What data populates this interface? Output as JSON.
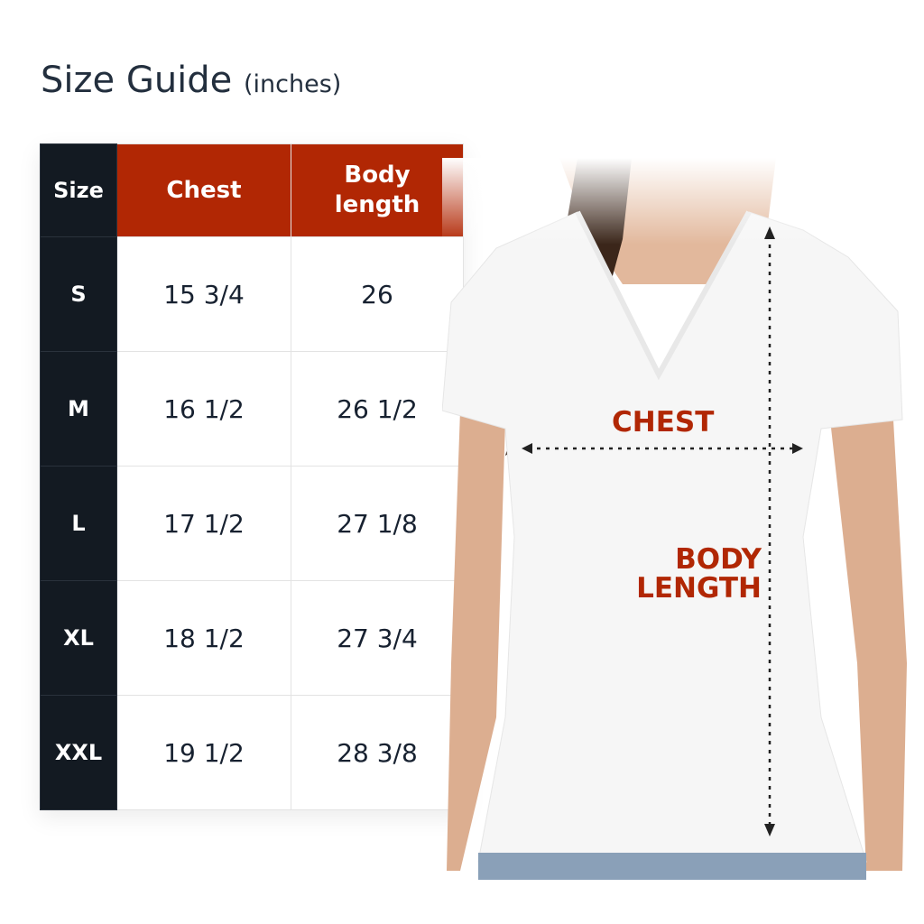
{
  "title": {
    "main": "Size Guide",
    "unit": "(inches)"
  },
  "table": {
    "headers": [
      "Size",
      "Chest",
      "Body length"
    ],
    "rows": [
      [
        "S",
        "15 3/4",
        "26"
      ],
      [
        "M",
        "16 1/2",
        "26 1/2"
      ],
      [
        "L",
        "17 1/2",
        "27 1/8"
      ],
      [
        "XL",
        "18 1/2",
        "27 3/4"
      ],
      [
        "XXL",
        "19 1/2",
        "28 3/8"
      ]
    ]
  },
  "diagram": {
    "chest_label": "CHEST",
    "body_label_1": "BODY",
    "body_label_2": "LENGTH"
  },
  "colors": {
    "accent": "#b12704",
    "dark": "#131a22",
    "text": "#172130"
  }
}
